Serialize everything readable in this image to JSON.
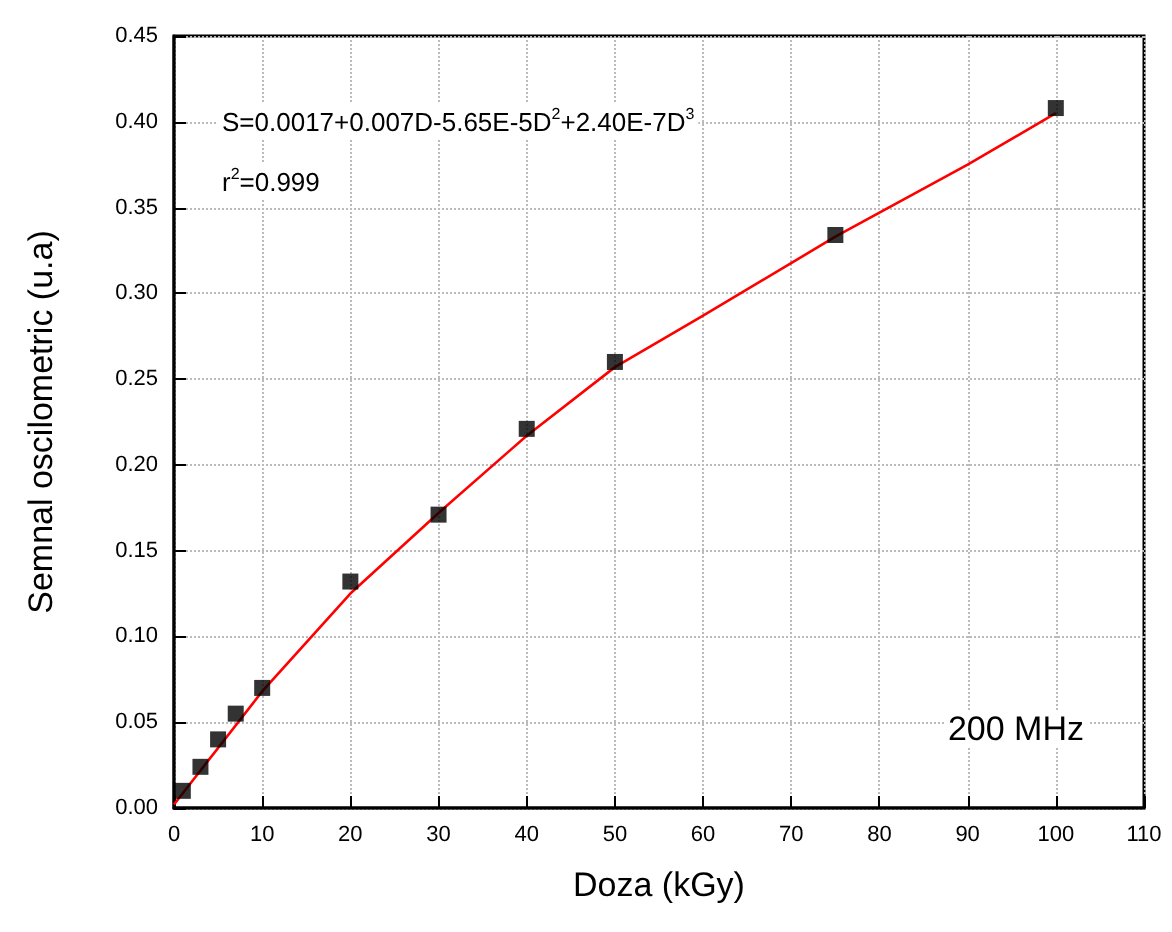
{
  "chart_data": {
    "type": "scatter",
    "xlabel": "Doza (kGy)",
    "ylabel": "Semnal oscilometric (u.a)",
    "annotations": [
      "S=0.0017+0.007D-5.65E-5D$^{2}$+2.40E-7D$^{3}$",
      "r$^{2}$=0.999",
      "200 MHz"
    ],
    "series": [
      {
        "color": "#000000",
        "marker": "square",
        "x": [
          1,
          3,
          5,
          7,
          10,
          20,
          30,
          40,
          50,
          75,
          100
        ],
        "values": [
          0.01,
          0.024,
          0.04,
          0.055,
          0.07,
          0.132,
          0.171,
          0.221,
          0.26,
          0.334,
          0.408
        ]
      },
      {
        "type": "line",
        "color": "#ff0000",
        "marker": "none",
        "x": [
          0,
          10,
          20,
          30,
          40,
          50,
          60,
          75,
          90,
          100
        ],
        "values": [
          0.002,
          0.068,
          0.125,
          0.172,
          0.217,
          0.257,
          0.287,
          0.333,
          0.375,
          0.405
        ]
      }
    ],
    "xlim": [
      0,
      110
    ],
    "xticks": [
      0,
      10,
      20,
      30,
      40,
      50,
      60,
      70,
      80,
      90,
      100,
      110
    ],
    "ylim": [
      0,
      0.45
    ],
    "yticks": [
      {
        "value": 0,
        "label": "0.00"
      },
      {
        "value": 0.05,
        "label": "0.05"
      },
      {
        "value": 0.1,
        "label": "0.10"
      },
      {
        "value": 0.15,
        "label": "0.15"
      },
      {
        "value": 0.2,
        "label": "0.20"
      },
      {
        "value": 0.25,
        "label": "0.25"
      },
      {
        "value": 0.3,
        "label": "0.30"
      },
      {
        "value": 0.35,
        "label": "0.35"
      },
      {
        "value": 0.4,
        "label": "0.40"
      },
      {
        "value": 0.45,
        "label": "0.45"
      }
    ],
    "grid": true
  }
}
